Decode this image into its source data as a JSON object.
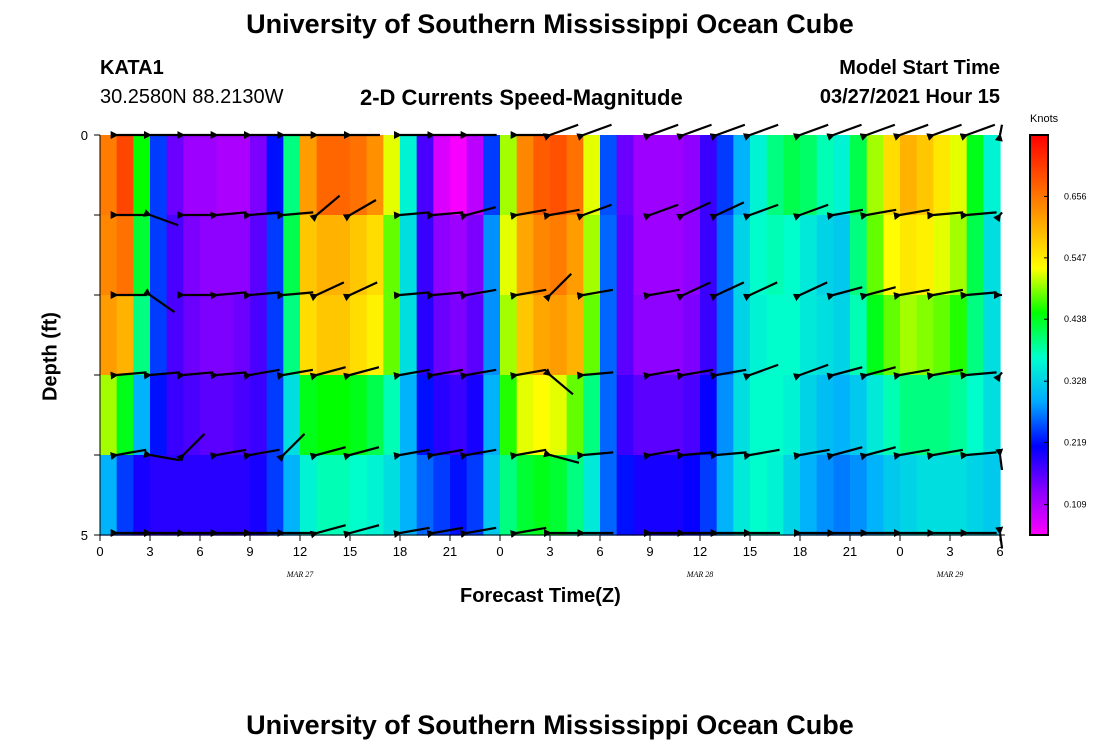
{
  "page": {
    "title_top": "University of Southern Mississippi Ocean Cube",
    "title_bottom": "University of Southern Mississippi Ocean Cube",
    "station_id": "KATA1",
    "station_coords": "30.2580N  88.2130W",
    "plot_title": "2-D Currents Speed-Magnitude",
    "model_start_label": "Model Start Time",
    "model_start_value": "03/27/2021 Hour 15"
  },
  "chart_data": {
    "type": "heatmap",
    "title": "2-D Currents Speed-Magnitude",
    "xlabel": "Forecast Time(Z)",
    "ylabel": "Depth (ft)",
    "ylim": [
      0,
      5
    ],
    "xlim": [
      0,
      54
    ],
    "x_ticks": [
      "0",
      "3",
      "6",
      "9",
      "12",
      "15",
      "18",
      "21",
      "0",
      "3",
      "6",
      "9",
      "12",
      "15",
      "18",
      "21",
      "0",
      "3",
      "6"
    ],
    "y_ticks": [
      "0",
      "5"
    ],
    "date_labels": [
      {
        "text": "MAR 27",
        "hour": 12
      },
      {
        "text": "MAR 28",
        "hour": 36
      },
      {
        "text": "MAR 29",
        "hour": 51
      }
    ],
    "colorbar": {
      "unit": "Knots",
      "min": 0.055,
      "max": 0.765,
      "ticks": [
        "0.656",
        "0.547",
        "0.438",
        "0.328",
        "0.219",
        "0.109"
      ],
      "tick_values": [
        0.656,
        0.547,
        0.438,
        0.328,
        0.219,
        0.109
      ],
      "colors": [
        "#ff00ff",
        "#8800ff",
        "#0000ff",
        "#00aaff",
        "#00ffcc",
        "#00ff00",
        "#ffff00",
        "#ffaa00",
        "#ff5500",
        "#ff0000"
      ]
    },
    "depth_levels": [
      0,
      1,
      2,
      3,
      4,
      5
    ],
    "time_knots": [
      0,
      1,
      2,
      3,
      4,
      5,
      6,
      7,
      8,
      9,
      10,
      11,
      12,
      13,
      14,
      15,
      16,
      17,
      18,
      19,
      20,
      21,
      22,
      23,
      24,
      25,
      26,
      27,
      28,
      29,
      30,
      31,
      32,
      33,
      34,
      35,
      36,
      37,
      38,
      39,
      40,
      41,
      42,
      43,
      44,
      45,
      46,
      47,
      48,
      49,
      50,
      51,
      52,
      53,
      54
    ],
    "speed_rows": [
      [
        0.65,
        0.7,
        0.45,
        0.24,
        0.15,
        0.12,
        0.12,
        0.11,
        0.11,
        0.14,
        0.22,
        0.4,
        0.62,
        0.67,
        0.67,
        0.66,
        0.63,
        0.52,
        0.36,
        0.17,
        0.08,
        0.06,
        0.1,
        0.24,
        0.5,
        0.64,
        0.68,
        0.69,
        0.66,
        0.52,
        0.25,
        0.15,
        0.12,
        0.12,
        0.12,
        0.13,
        0.18,
        0.24,
        0.3,
        0.36,
        0.4,
        0.42,
        0.41,
        0.38,
        0.36,
        0.42,
        0.5,
        0.56,
        0.6,
        0.58,
        0.55,
        0.52,
        0.44,
        0.36,
        0.3
      ],
      [
        0.64,
        0.66,
        0.43,
        0.24,
        0.17,
        0.14,
        0.13,
        0.13,
        0.13,
        0.16,
        0.24,
        0.42,
        0.58,
        0.6,
        0.6,
        0.58,
        0.56,
        0.48,
        0.34,
        0.18,
        0.13,
        0.12,
        0.14,
        0.28,
        0.52,
        0.61,
        0.64,
        0.65,
        0.62,
        0.5,
        0.26,
        0.16,
        0.12,
        0.12,
        0.12,
        0.13,
        0.18,
        0.26,
        0.33,
        0.37,
        0.38,
        0.37,
        0.35,
        0.33,
        0.32,
        0.4,
        0.48,
        0.53,
        0.55,
        0.54,
        0.52,
        0.5,
        0.42,
        0.34,
        0.3
      ],
      [
        0.62,
        0.6,
        0.4,
        0.24,
        0.17,
        0.15,
        0.14,
        0.14,
        0.15,
        0.17,
        0.24,
        0.4,
        0.56,
        0.58,
        0.58,
        0.56,
        0.54,
        0.48,
        0.34,
        0.19,
        0.15,
        0.14,
        0.16,
        0.28,
        0.5,
        0.58,
        0.61,
        0.62,
        0.6,
        0.48,
        0.26,
        0.16,
        0.13,
        0.13,
        0.13,
        0.14,
        0.18,
        0.26,
        0.33,
        0.36,
        0.37,
        0.37,
        0.35,
        0.34,
        0.33,
        0.38,
        0.44,
        0.48,
        0.5,
        0.49,
        0.48,
        0.46,
        0.4,
        0.34,
        0.3
      ],
      [
        0.5,
        0.44,
        0.3,
        0.22,
        0.18,
        0.17,
        0.16,
        0.16,
        0.17,
        0.18,
        0.24,
        0.34,
        0.44,
        0.45,
        0.45,
        0.44,
        0.42,
        0.38,
        0.3,
        0.22,
        0.19,
        0.18,
        0.2,
        0.3,
        0.46,
        0.52,
        0.53,
        0.52,
        0.48,
        0.4,
        0.26,
        0.18,
        0.16,
        0.16,
        0.16,
        0.17,
        0.21,
        0.28,
        0.34,
        0.37,
        0.37,
        0.36,
        0.33,
        0.31,
        0.3,
        0.32,
        0.35,
        0.38,
        0.4,
        0.4,
        0.4,
        0.39,
        0.37,
        0.34,
        0.31
      ],
      [
        0.3,
        0.24,
        0.2,
        0.19,
        0.19,
        0.19,
        0.19,
        0.19,
        0.19,
        0.2,
        0.24,
        0.3,
        0.36,
        0.38,
        0.38,
        0.37,
        0.36,
        0.34,
        0.3,
        0.26,
        0.24,
        0.22,
        0.24,
        0.32,
        0.4,
        0.43,
        0.44,
        0.43,
        0.4,
        0.35,
        0.26,
        0.22,
        0.2,
        0.2,
        0.2,
        0.21,
        0.24,
        0.3,
        0.35,
        0.37,
        0.36,
        0.33,
        0.3,
        0.28,
        0.27,
        0.28,
        0.3,
        0.32,
        0.33,
        0.34,
        0.34,
        0.34,
        0.33,
        0.32,
        0.3
      ],
      [
        0.16,
        0.14,
        0.13,
        0.13,
        0.14,
        0.15,
        0.16,
        0.17,
        0.18,
        0.2,
        0.23,
        0.27,
        0.29,
        0.3,
        0.3,
        0.3,
        0.3,
        0.3,
        0.29,
        0.27,
        0.25,
        0.24,
        0.26,
        0.3,
        0.33,
        0.34,
        0.33,
        0.31,
        0.29,
        0.27,
        0.24,
        0.22,
        0.22,
        0.22,
        0.22,
        0.23,
        0.25,
        0.28,
        0.3,
        0.3,
        0.28,
        0.26,
        0.24,
        0.23,
        0.24,
        0.26,
        0.28,
        0.3,
        0.31,
        0.32,
        0.32,
        0.32,
        0.31,
        0.3,
        0.28
      ]
    ],
    "vector_depths": [
      0,
      1,
      2,
      3,
      4,
      5
    ],
    "vector_times": [
      1,
      3,
      5,
      7,
      9,
      11,
      13,
      15,
      18,
      20,
      22,
      25,
      27,
      29,
      33,
      35,
      37,
      39,
      42,
      44,
      46,
      48,
      50,
      52,
      54
    ],
    "vector_angles_deg": [
      [
        0,
        0,
        0,
        0,
        0,
        0,
        0,
        0,
        0,
        0,
        0,
        0,
        -20,
        -20,
        -20,
        -20,
        -20,
        -20,
        -20,
        -20,
        -20,
        -20,
        -20,
        -20,
        -20
      ],
      [
        0,
        20,
        0,
        -5,
        -5,
        -5,
        -40,
        -30,
        -5,
        -5,
        -15,
        -10,
        -10,
        -20,
        -20,
        -25,
        -25,
        -20,
        -20,
        -10,
        -10,
        -10,
        -5,
        -5,
        -5
      ],
      [
        0,
        35,
        0,
        -5,
        -5,
        -5,
        -25,
        -25,
        -5,
        -5,
        -10,
        -10,
        -45,
        -10,
        -10,
        -25,
        -25,
        -25,
        -25,
        -15,
        -15,
        -10,
        -10,
        -5,
        0
      ],
      [
        -5,
        -5,
        -5,
        -5,
        -10,
        -10,
        -15,
        -15,
        -10,
        -10,
        -10,
        -10,
        40,
        -5,
        -10,
        -10,
        -10,
        -20,
        -20,
        -15,
        -15,
        -10,
        -10,
        -5,
        -5
      ],
      [
        -10,
        10,
        -45,
        -10,
        -10,
        -45,
        -15,
        -15,
        -10,
        -10,
        -10,
        -10,
        15,
        -5,
        -10,
        -5,
        -5,
        -10,
        -10,
        -15,
        -15,
        -10,
        -10,
        -5,
        30
      ],
      [
        0,
        0,
        0,
        0,
        0,
        0,
        -15,
        -15,
        -10,
        -10,
        -10,
        -10,
        0,
        0,
        0,
        0,
        0,
        0,
        0,
        0,
        0,
        0,
        0,
        0,
        30
      ]
    ]
  }
}
